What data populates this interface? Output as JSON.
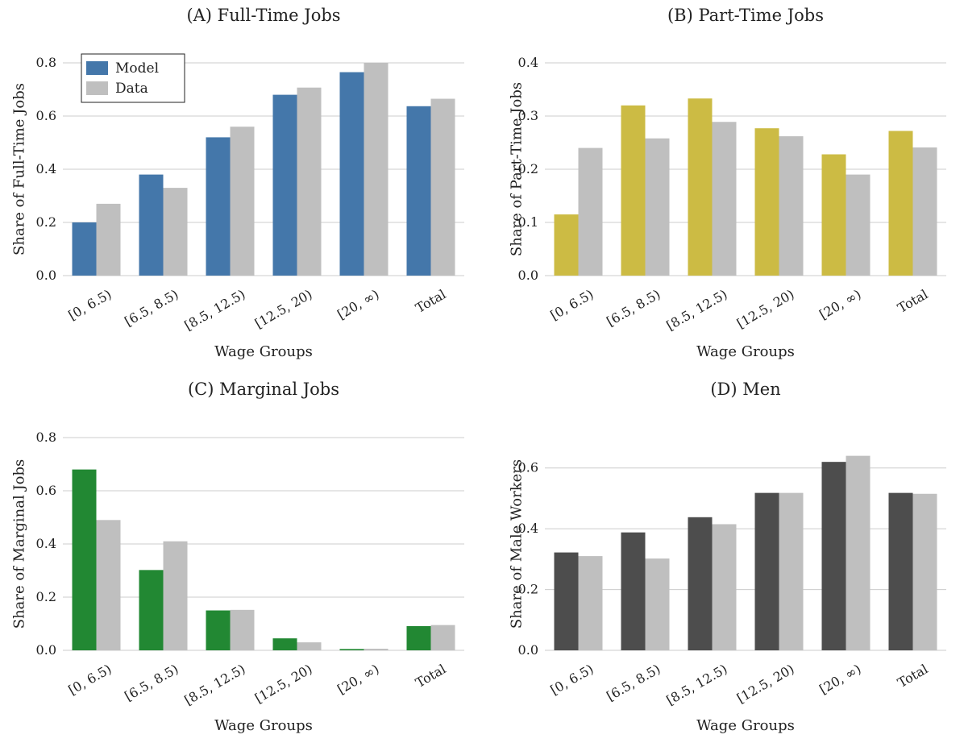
{
  "chart_data": [
    {
      "type": "bar",
      "title": "(A) Full-Time Jobs",
      "xlabel": "Wage Groups",
      "ylabel": "Share of Full-Time Jobs",
      "categories": [
        "[0, 6.5)",
        "[6.5, 8.5)",
        "[8.5, 12.5)",
        "[12.5, 20)",
        "[20, ∞)",
        "Total"
      ],
      "series": [
        {
          "name": "Model",
          "color": "#4477aa",
          "values": [
            0.2,
            0.38,
            0.52,
            0.68,
            0.765,
            0.637
          ]
        },
        {
          "name": "Data",
          "color": "#bfbfbf",
          "values": [
            0.27,
            0.33,
            0.56,
            0.707,
            0.8,
            0.665
          ]
        }
      ],
      "ylim": [
        0,
        0.8
      ],
      "yticks": [
        0.0,
        0.2,
        0.4,
        0.6,
        0.8
      ],
      "ytick_labels": [
        "0.0",
        "0.2",
        "0.4",
        "0.6",
        "0.8"
      ],
      "grid": true,
      "legend": "top-left"
    },
    {
      "type": "bar",
      "title": "(B) Part-Time Jobs",
      "xlabel": "Wage Groups",
      "ylabel": "Share of Part-Time Jobs",
      "categories": [
        "[0, 6.5)",
        "[6.5, 8.5)",
        "[8.5, 12.5)",
        "[12.5, 20)",
        "[20, ∞)",
        "Total"
      ],
      "series": [
        {
          "color": "#ccbb44",
          "values": [
            0.115,
            0.32,
            0.333,
            0.277,
            0.228,
            0.272
          ]
        },
        {
          "color": "#bfbfbf",
          "values": [
            0.24,
            0.258,
            0.289,
            0.262,
            0.19,
            0.241
          ]
        }
      ],
      "ylim": [
        0,
        0.4
      ],
      "yticks": [
        0.0,
        0.1,
        0.2,
        0.3,
        0.4
      ],
      "ytick_labels": [
        "0.0",
        "0.1",
        "0.2",
        "0.3",
        "0.4"
      ],
      "grid": true
    },
    {
      "type": "bar",
      "title": "(C) Marginal Jobs",
      "xlabel": "Wage Groups",
      "ylabel": "Share of Marginal Jobs",
      "categories": [
        "[0, 6.5)",
        "[6.5, 8.5)",
        "[8.5, 12.5)",
        "[12.5, 20)",
        "[20, ∞)",
        "Total"
      ],
      "series": [
        {
          "color": "#228833",
          "values": [
            0.68,
            0.302,
            0.15,
            0.045,
            0.005,
            0.091
          ]
        },
        {
          "color": "#bfbfbf",
          "values": [
            0.49,
            0.41,
            0.152,
            0.03,
            0.006,
            0.095
          ]
        }
      ],
      "ylim": [
        0,
        0.8
      ],
      "yticks": [
        0.0,
        0.2,
        0.4,
        0.6,
        0.8
      ],
      "ytick_labels": [
        "0.0",
        "0.2",
        "0.4",
        "0.6",
        "0.8"
      ],
      "grid": true
    },
    {
      "type": "bar",
      "title": "(D) Men",
      "xlabel": "Wage Groups",
      "ylabel": "Share of Male Workers",
      "categories": [
        "[0, 6.5)",
        "[6.5, 8.5)",
        "[8.5, 12.5)",
        "[12.5, 20)",
        "[20, ∞)",
        "Total"
      ],
      "series": [
        {
          "color": "#4d4d4d",
          "values": [
            0.322,
            0.388,
            0.438,
            0.518,
            0.62,
            0.518
          ]
        },
        {
          "color": "#bfbfbf",
          "values": [
            0.31,
            0.302,
            0.415,
            0.518,
            0.64,
            0.515
          ]
        }
      ],
      "ylim": [
        0,
        0.7
      ],
      "yticks": [
        0.0,
        0.2,
        0.4,
        0.6
      ],
      "ytick_labels": [
        "0.0",
        "0.2",
        "0.4",
        "0.6"
      ],
      "grid": true
    }
  ]
}
